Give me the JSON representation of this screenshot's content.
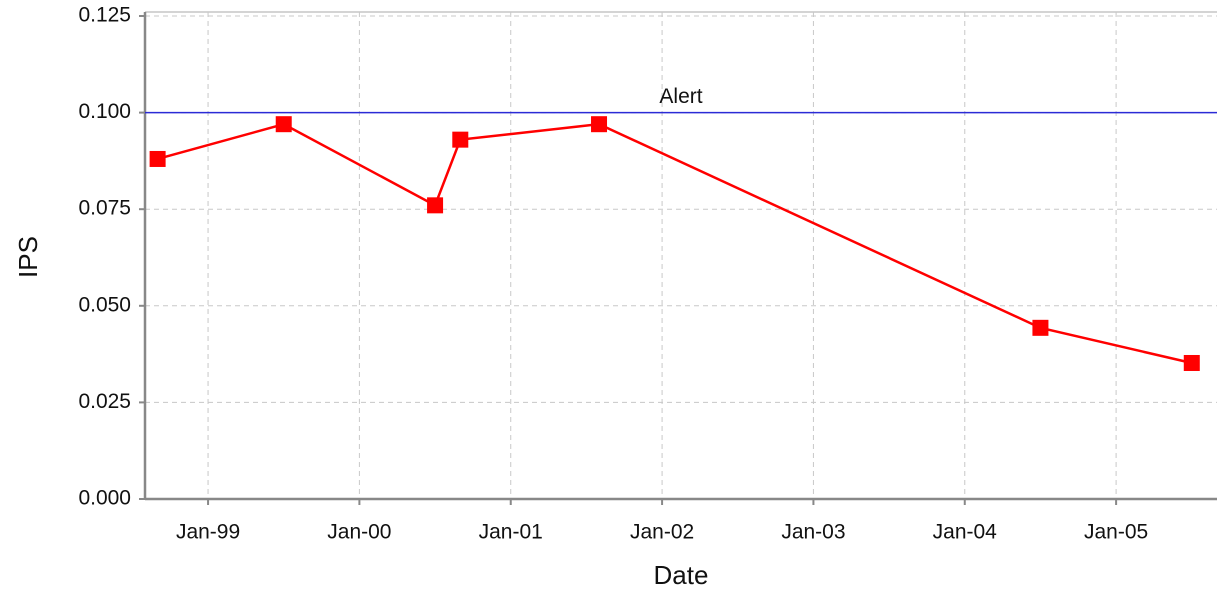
{
  "chart_data": {
    "type": "line",
    "x_label": "Date",
    "y_label": "IPS",
    "x": [
      "1998-09",
      "1999-07",
      "2000-07",
      "2000-09",
      "2001-08",
      "2004-07",
      "2005-07"
    ],
    "series": [
      {
        "name": "IPS",
        "color": "#ff0000",
        "values": [
          0.088,
          0.097,
          0.076,
          0.093,
          0.097,
          0.0443,
          0.0352
        ]
      }
    ],
    "xlim": [
      "1998-08",
      "2005-09"
    ],
    "xticks": [
      {
        "value": "1999-01",
        "label": "Jan-99"
      },
      {
        "value": "2000-01",
        "label": "Jan-00"
      },
      {
        "value": "2001-01",
        "label": "Jan-01"
      },
      {
        "value": "2002-01",
        "label": "Jan-02"
      },
      {
        "value": "2003-01",
        "label": "Jan-03"
      },
      {
        "value": "2004-01",
        "label": "Jan-04"
      },
      {
        "value": "2005-01",
        "label": "Jan-05"
      }
    ],
    "ylim": [
      0,
      0.125
    ],
    "yticks": [
      {
        "value": 0,
        "label": "0.000"
      },
      {
        "value": 0.025,
        "label": "0.025"
      },
      {
        "value": 0.05,
        "label": "0.050"
      },
      {
        "value": 0.075,
        "label": "0.075"
      },
      {
        "value": 0.1,
        "label": "0.100"
      },
      {
        "value": 0.125,
        "label": "0.125"
      }
    ],
    "reference_lines": [
      {
        "value": 0.1,
        "label": "Alert",
        "color": "#2b2bd6"
      }
    ],
    "grid": true
  }
}
